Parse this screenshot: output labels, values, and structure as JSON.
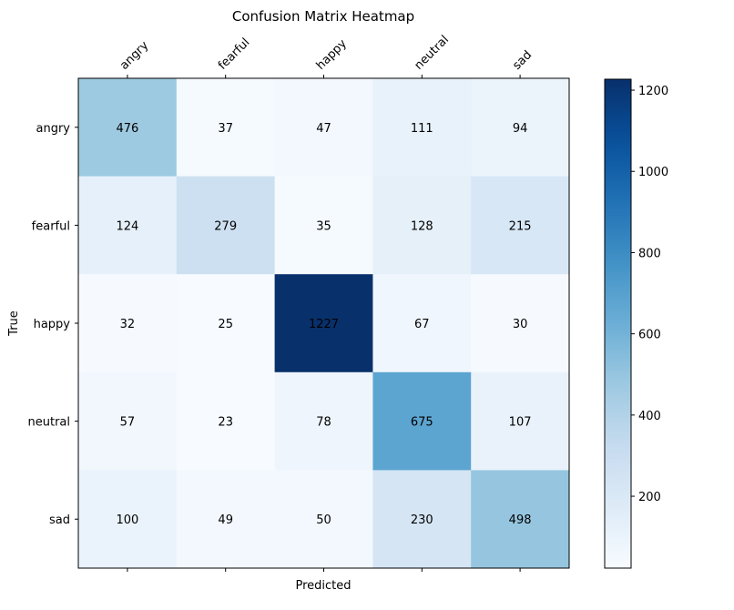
{
  "chart_data": {
    "type": "heatmap",
    "title": "Confusion Matrix Heatmap",
    "xlabel": "Predicted",
    "ylabel": "True",
    "x_categories": [
      "angry",
      "fearful",
      "happy",
      "neutral",
      "sad"
    ],
    "y_categories": [
      "angry",
      "fearful",
      "happy",
      "neutral",
      "sad"
    ],
    "values": [
      [
        476,
        37,
        47,
        111,
        94
      ],
      [
        124,
        279,
        35,
        128,
        215
      ],
      [
        32,
        25,
        1227,
        67,
        30
      ],
      [
        57,
        23,
        78,
        675,
        107
      ],
      [
        100,
        49,
        50,
        230,
        498
      ]
    ],
    "colormap": "Blues",
    "colorbar": {
      "range": [
        23,
        1227
      ],
      "ticks": [
        200,
        400,
        600,
        800,
        1000,
        1200
      ]
    },
    "x_tick_position": "top",
    "grid": false
  }
}
